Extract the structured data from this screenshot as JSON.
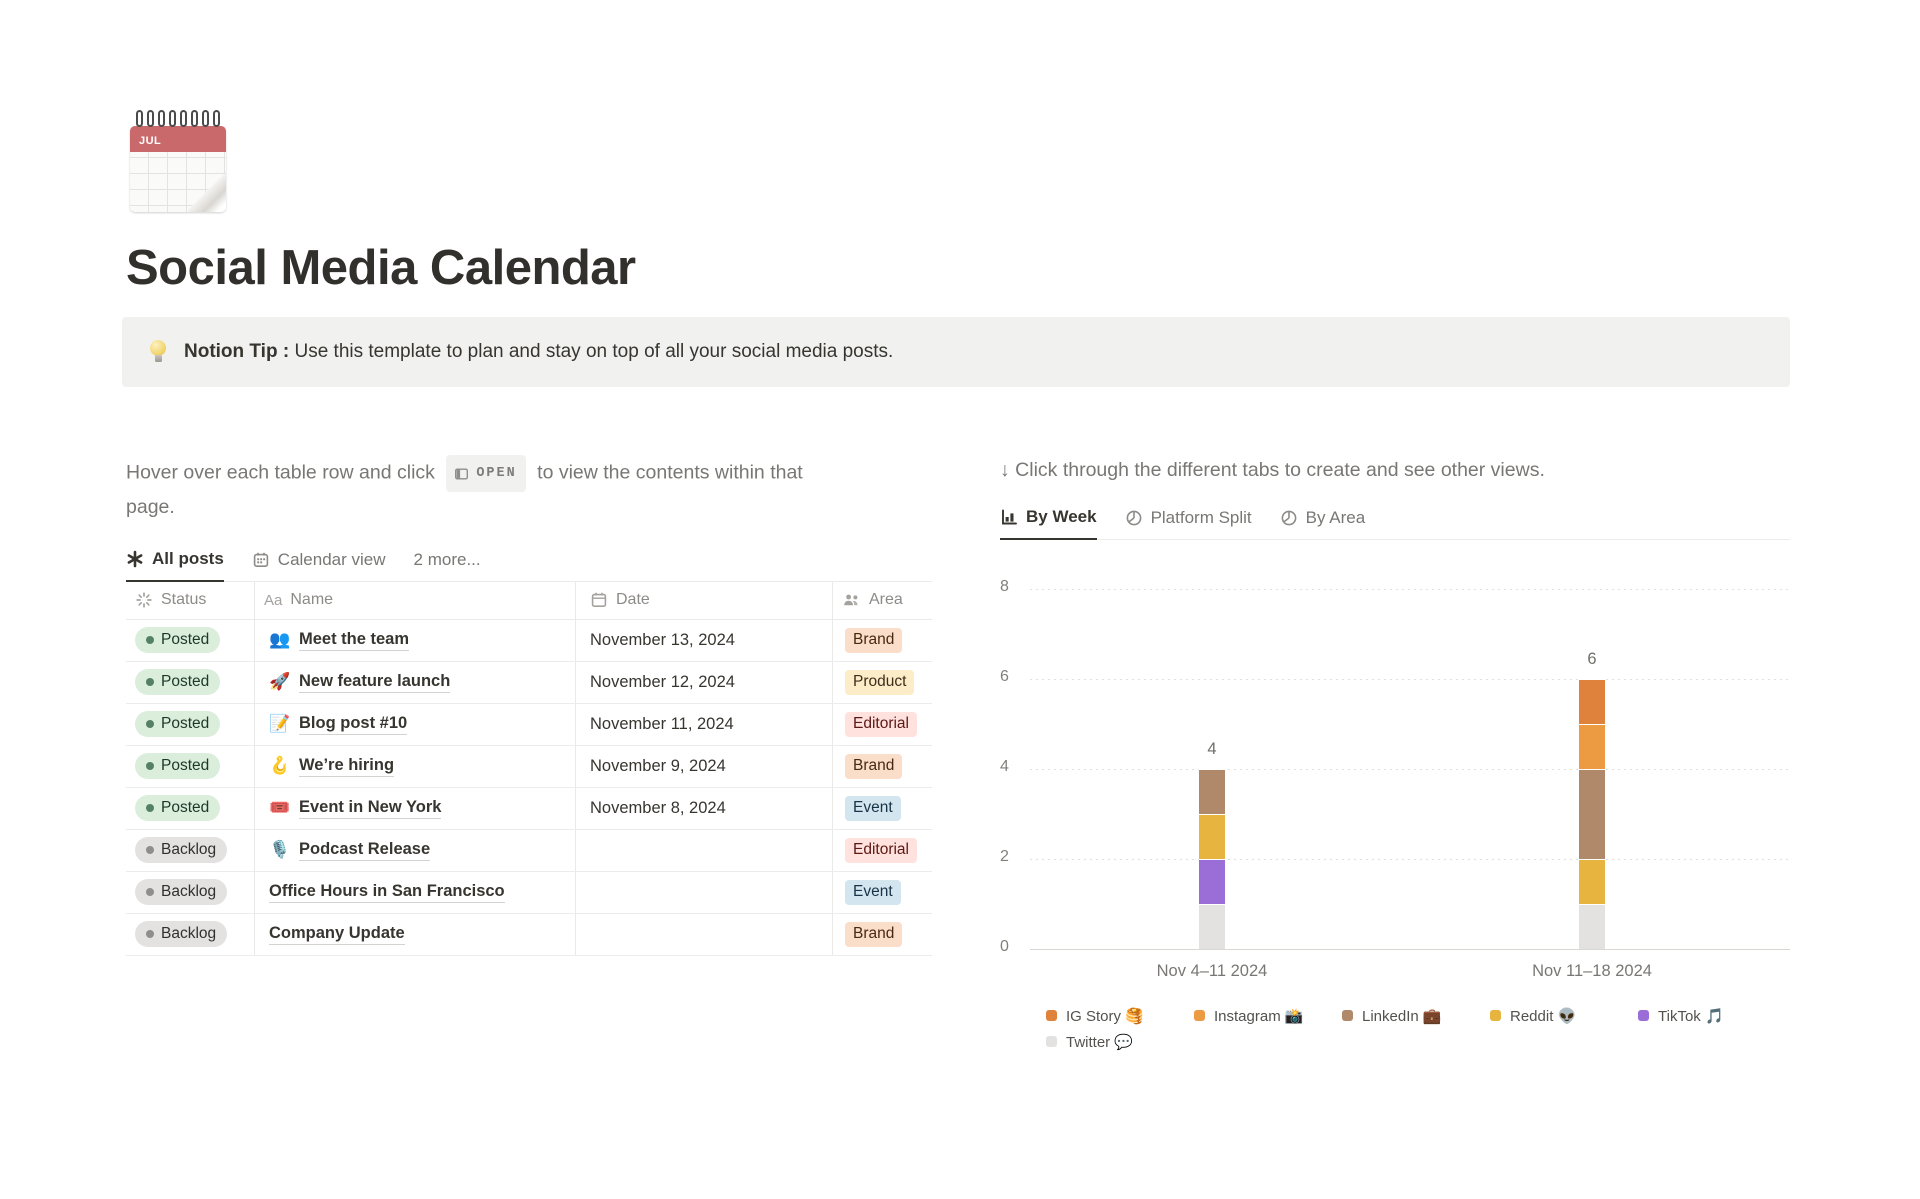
{
  "page": {
    "icon": "spiral-calendar",
    "icon_month": "JUL",
    "title": "Social Media Calendar"
  },
  "callout": {
    "icon": "lightbulb",
    "bold_text": "Notion Tip :",
    "text": "Use this template to plan and stay on top of all your social media posts."
  },
  "left": {
    "instruction_before": "Hover over each table row and click",
    "open_badge_label": "OPEN",
    "instruction_after": "to view the contents within that page.",
    "tabs": [
      {
        "label": "All posts",
        "active": true
      },
      {
        "label": "Calendar view",
        "active": false
      },
      {
        "label": "2 more...",
        "active": false
      }
    ],
    "table": {
      "headers": [
        {
          "label": "Status"
        },
        {
          "label": "Name"
        },
        {
          "label": "Date"
        },
        {
          "label": "Area"
        }
      ],
      "rows": [
        {
          "status": "Posted",
          "emoji": "👥",
          "name": "Meet the team",
          "date": "November 13, 2024",
          "area": "Brand"
        },
        {
          "status": "Posted",
          "emoji": "🚀",
          "name": "New feature launch",
          "date": "November 12, 2024",
          "area": "Product"
        },
        {
          "status": "Posted",
          "emoji": "📝",
          "name": "Blog post #10",
          "date": "November 11, 2024",
          "area": "Editorial"
        },
        {
          "status": "Posted",
          "emoji": "🪝",
          "name": "We’re hiring",
          "date": "November 9, 2024",
          "area": "Brand"
        },
        {
          "status": "Posted",
          "emoji": "🎟️",
          "name": "Event in New York",
          "date": "November 8, 2024",
          "area": "Event"
        },
        {
          "status": "Backlog",
          "emoji": "🎙️",
          "name": "Podcast Release",
          "date": "",
          "area": "Editorial"
        },
        {
          "status": "Backlog",
          "emoji": "",
          "name": "Office Hours in San Francisco",
          "date": "",
          "area": "Event"
        },
        {
          "status": "Backlog",
          "emoji": "",
          "name": "Company Update",
          "date": "",
          "area": "Brand"
        }
      ]
    }
  },
  "right": {
    "instruction": "↓ Click through the different tabs to create and see other views.",
    "tabs": [
      {
        "label": "By Week",
        "active": true
      },
      {
        "label": "Platform Split",
        "active": false
      },
      {
        "label": "By Area",
        "active": false
      }
    ]
  },
  "chart_data": {
    "type": "bar",
    "stacked": true,
    "title": "",
    "categories": [
      "Nov 4–11 2024",
      "Nov 11–18 2024"
    ],
    "series": [
      {
        "name": "IG Story 🥞",
        "color": "#DF833C",
        "values": [
          0,
          1
        ]
      },
      {
        "name": "Instagram 📸",
        "color": "#EC9B42",
        "values": [
          0,
          1
        ]
      },
      {
        "name": "LinkedIn 💼",
        "color": "#B0886A",
        "values": [
          1,
          2
        ]
      },
      {
        "name": "Reddit 👽",
        "color": "#E7B43F",
        "values": [
          1,
          1
        ]
      },
      {
        "name": "TikTok 🎵",
        "color": "#9A6DD7",
        "values": [
          1,
          0
        ]
      },
      {
        "name": "Twitter 💬",
        "color": "#E3E2E0",
        "values": [
          1,
          1
        ]
      }
    ],
    "stack_order_bottom_to_top": [
      "Twitter 💬",
      "TikTok 🎵",
      "Reddit 👽",
      "LinkedIn 💼",
      "Instagram 📸",
      "IG Story 🥞"
    ],
    "totals": [
      4,
      6
    ],
    "bar_value_labels": [
      "4",
      "6"
    ],
    "yticks": [
      0,
      2,
      4,
      6,
      8
    ],
    "ylim": [
      0,
      8
    ],
    "xlabel": "",
    "ylabel": "",
    "gridlines": "dotted-horizontal",
    "legend_position": "bottom"
  }
}
